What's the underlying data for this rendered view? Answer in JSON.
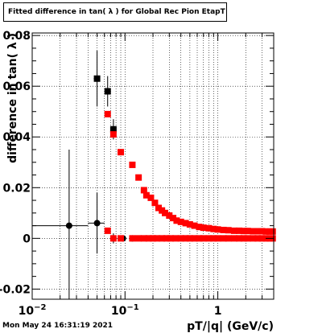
{
  "title": "Fitted difference in tan( λ ) for Global Rec Pion EtapT",
  "footer": "Mon May 24 16:31:19 2021",
  "chart_data": {
    "type": "scatter",
    "xlabel": "pT/|q| (GeV/c)",
    "ylabel": "difference in tan( λ )",
    "xscale": "log",
    "xlim": [
      0.01,
      4.0
    ],
    "ylim": [
      -0.024,
      0.081
    ],
    "grid": true,
    "x_ticks": [
      {
        "value": 0.01,
        "base": "10",
        "exp": "−2"
      },
      {
        "value": 0.1,
        "base": "10",
        "exp": "−1"
      },
      {
        "value": 1,
        "base": "1",
        "exp": ""
      }
    ],
    "y_ticks": [
      {
        "value": -0.02,
        "label": "-0.02"
      },
      {
        "value": 0,
        "label": "0"
      },
      {
        "value": 0.02,
        "label": "0.02"
      },
      {
        "value": 0.04,
        "label": "0.04"
      },
      {
        "value": 0.06,
        "label": "0.06"
      },
      {
        "value": 0.08,
        "label": "0.08"
      }
    ],
    "series": [
      {
        "color": "#000000",
        "marker": "square",
        "points": [
          {
            "x": 0.05,
            "y": 0.063,
            "yerr": 0.011,
            "xerr": 0.004
          },
          {
            "x": 0.065,
            "y": 0.058,
            "yerr": 0.006,
            "xerr": 0.003
          },
          {
            "x": 0.075,
            "y": 0.043,
            "yerr": 0.004,
            "xerr": 0.003
          }
        ]
      },
      {
        "color": "#000000",
        "marker": "circle",
        "points": [
          {
            "x": 0.025,
            "y": 0.005,
            "yerr": 0.03,
            "xerr": 0.015
          },
          {
            "x": 0.05,
            "y": 0.006,
            "yerr": 0.012,
            "xerr": 0.01
          },
          {
            "x": 0.075,
            "y": 0.0,
            "yerr": 0.002,
            "xerr": 0.003
          },
          {
            "x": 0.095,
            "y": 0.0,
            "yerr": 0.001,
            "xerr": 0.003
          },
          {
            "x": 0.12,
            "y": 0.0,
            "yerr": 0.0005,
            "xerr": 0.002
          }
        ]
      },
      {
        "color": "#ff0000",
        "marker": "square",
        "points": [
          {
            "x": 0.065,
            "y": 0.049
          },
          {
            "x": 0.075,
            "y": 0.041
          },
          {
            "x": 0.09,
            "y": 0.034
          },
          {
            "x": 0.12,
            "y": 0.029
          },
          {
            "x": 0.14,
            "y": 0.024
          },
          {
            "x": 0.16,
            "y": 0.019
          },
          {
            "x": 0.17,
            "y": 0.017
          },
          {
            "x": 0.19,
            "y": 0.016
          },
          {
            "x": 0.21,
            "y": 0.014
          },
          {
            "x": 0.23,
            "y": 0.012
          },
          {
            "x": 0.25,
            "y": 0.011
          },
          {
            "x": 0.27,
            "y": 0.01
          },
          {
            "x": 0.3,
            "y": 0.009
          },
          {
            "x": 0.33,
            "y": 0.008
          },
          {
            "x": 0.36,
            "y": 0.007
          },
          {
            "x": 0.4,
            "y": 0.0065
          },
          {
            "x": 0.45,
            "y": 0.006
          },
          {
            "x": 0.5,
            "y": 0.0055
          },
          {
            "x": 0.56,
            "y": 0.005
          },
          {
            "x": 0.63,
            "y": 0.0045
          },
          {
            "x": 0.7,
            "y": 0.0042
          },
          {
            "x": 0.8,
            "y": 0.004
          },
          {
            "x": 0.9,
            "y": 0.0037
          },
          {
            "x": 1.0,
            "y": 0.0035
          },
          {
            "x": 1.15,
            "y": 0.0033
          },
          {
            "x": 1.3,
            "y": 0.0032
          },
          {
            "x": 1.5,
            "y": 0.003
          },
          {
            "x": 1.7,
            "y": 0.003
          },
          {
            "x": 1.9,
            "y": 0.0029
          },
          {
            "x": 2.1,
            "y": 0.0029
          },
          {
            "x": 2.4,
            "y": 0.0028
          },
          {
            "x": 2.7,
            "y": 0.0028
          },
          {
            "x": 3.0,
            "y": 0.0028
          },
          {
            "x": 3.3,
            "y": 0.0027
          },
          {
            "x": 3.6,
            "y": 0.0027
          },
          {
            "x": 3.9,
            "y": 0.0027
          },
          {
            "x": 0.065,
            "y": 0.003
          },
          {
            "x": 0.075,
            "y": 0.0
          },
          {
            "x": 0.09,
            "y": 0.0
          },
          {
            "x": 0.12,
            "y": 0.0
          },
          {
            "x": 0.14,
            "y": 0.0
          },
          {
            "x": 0.16,
            "y": 0.0
          },
          {
            "x": 0.18,
            "y": 0.0
          },
          {
            "x": 0.2,
            "y": 0.0
          },
          {
            "x": 0.22,
            "y": 0.0
          },
          {
            "x": 0.25,
            "y": 0.0
          },
          {
            "x": 0.28,
            "y": 0.0
          },
          {
            "x": 0.31,
            "y": 0.0
          },
          {
            "x": 0.35,
            "y": 0.0
          },
          {
            "x": 0.4,
            "y": 0.0
          },
          {
            "x": 0.45,
            "y": 0.0
          },
          {
            "x": 0.5,
            "y": 0.0
          },
          {
            "x": 0.56,
            "y": 0.0
          },
          {
            "x": 0.63,
            "y": 0.0
          },
          {
            "x": 0.7,
            "y": 0.0
          },
          {
            "x": 0.8,
            "y": 0.0
          },
          {
            "x": 0.9,
            "y": 0.0
          },
          {
            "x": 1.0,
            "y": 0.0
          },
          {
            "x": 1.15,
            "y": 0.0
          },
          {
            "x": 1.3,
            "y": 0.0
          },
          {
            "x": 1.5,
            "y": 0.0
          },
          {
            "x": 1.7,
            "y": 0.0
          },
          {
            "x": 1.9,
            "y": 0.0
          },
          {
            "x": 2.1,
            "y": 0.0
          },
          {
            "x": 2.4,
            "y": 0.0
          },
          {
            "x": 2.7,
            "y": 0.0
          },
          {
            "x": 3.0,
            "y": 0.0
          },
          {
            "x": 3.3,
            "y": 0.0
          },
          {
            "x": 3.6,
            "y": 0.0
          },
          {
            "x": 3.9,
            "y": 0.0
          }
        ]
      }
    ]
  }
}
